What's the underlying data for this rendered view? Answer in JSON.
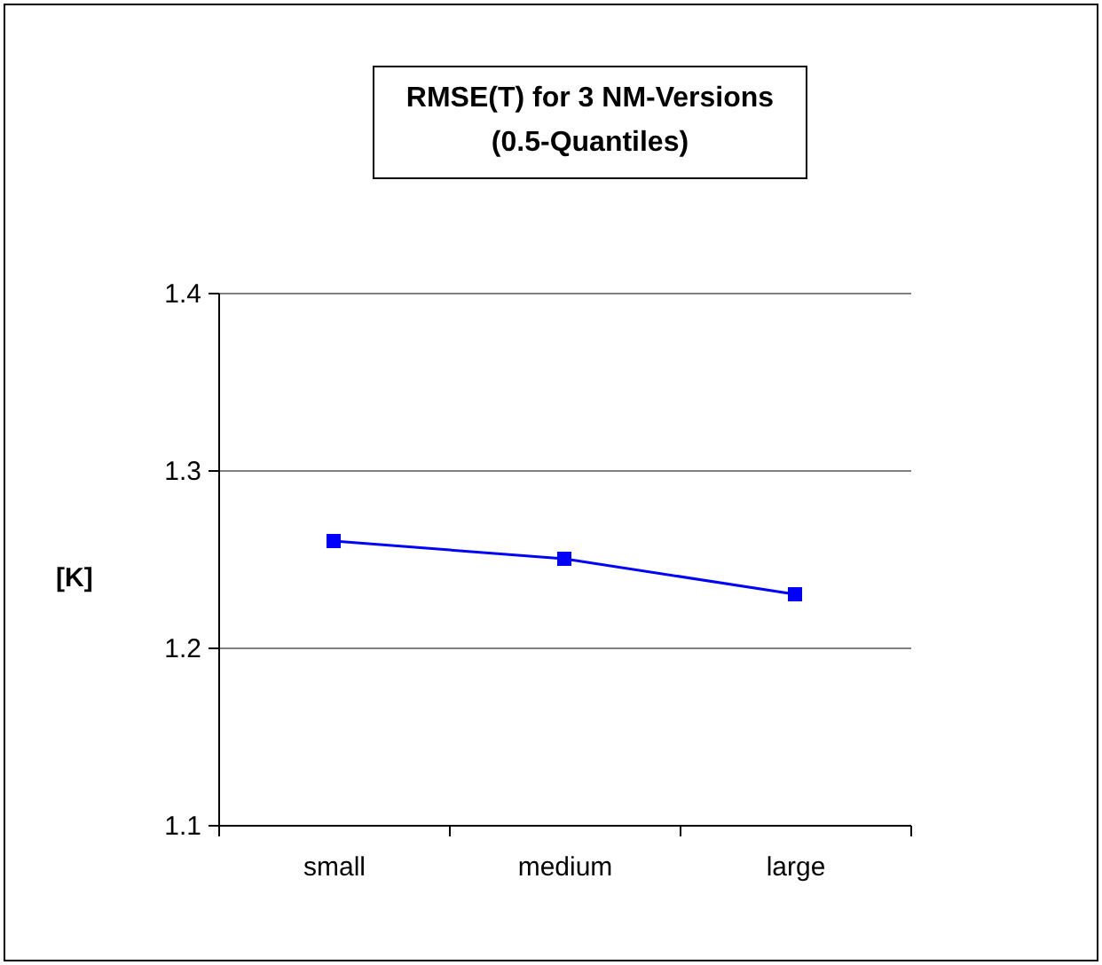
{
  "chart_data": {
    "type": "line",
    "title": "RMSE(T) for 3 NM-Versions (0.5-Quantiles)",
    "ylabel": "[K]",
    "categories": [
      "small",
      "medium",
      "large"
    ],
    "series": [
      {
        "color": "#0000ff",
        "values": [
          1.26,
          1.25,
          1.23
        ]
      }
    ],
    "ylim": [
      1.1,
      1.4
    ],
    "yticks": [
      1.1,
      1.2,
      1.3,
      1.4
    ],
    "grid": "y",
    "marker": "square",
    "line_style": "solid",
    "legend": false
  }
}
